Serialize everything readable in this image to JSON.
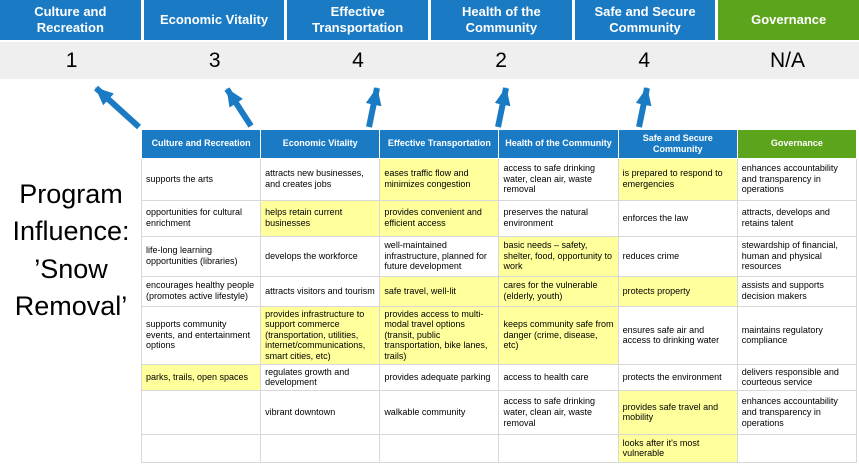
{
  "title": {
    "text": "Program Influence: ’Snow Removal’"
  },
  "colors": {
    "pillar_blue": "#1A7BC4",
    "governance_green": "#5DA41D",
    "highlight_yellow": "#FFFF9C",
    "score_band_gray": "#EFEFEF",
    "arrow_blue": "#1A7BC4"
  },
  "banner": {
    "columns": [
      {
        "label": "Culture and Recreation",
        "score": "1",
        "color": "#1A7BC4"
      },
      {
        "label": "Economic Vitality",
        "score": "3",
        "color": "#1A7BC4"
      },
      {
        "label": "Effective Transportation",
        "score": "4",
        "color": "#1A7BC4"
      },
      {
        "label": "Health of the Community",
        "score": "2",
        "color": "#1A7BC4"
      },
      {
        "label": "Safe and Secure Community",
        "score": "4",
        "color": "#1A7BC4"
      },
      {
        "label": "Governance",
        "score": "N/A",
        "color": "#5DA41D"
      }
    ]
  },
  "table": {
    "headers": [
      "Culture and Recreation",
      "Economic Vitality",
      "Effective Transportation",
      "Health of the Community",
      "Safe and Secure Community",
      "Governance"
    ],
    "rows": [
      [
        {
          "text": "supports the arts",
          "highlight": false
        },
        {
          "text": "attracts new businesses, and creates jobs",
          "highlight": false
        },
        {
          "text": "eases traffic flow and minimizes congestion",
          "highlight": true
        },
        {
          "text": "access to safe drinking water, clean air, waste removal",
          "highlight": false
        },
        {
          "text": "is prepared to respond to emergencies",
          "highlight": true
        },
        {
          "text": "enhances accountability and transparency in operations",
          "highlight": false
        }
      ],
      [
        {
          "text": "opportunities for cultural enrichment",
          "highlight": false
        },
        {
          "text": "helps retain current businesses",
          "highlight": true
        },
        {
          "text": "provides convenient and efficient access",
          "highlight": true
        },
        {
          "text": "preserves the natural environment",
          "highlight": false
        },
        {
          "text": "enforces the law",
          "highlight": false
        },
        {
          "text": "attracts, develops and retains talent",
          "highlight": false
        }
      ],
      [
        {
          "text": "life-long learning opportunities (libraries)",
          "highlight": false
        },
        {
          "text": "develops the workforce",
          "highlight": false
        },
        {
          "text": "well-maintained infrastructure, planned for future development",
          "highlight": false
        },
        {
          "text": "basic needs – safety, shelter, food, opportunity to work",
          "highlight": true
        },
        {
          "text": "reduces crime",
          "highlight": false
        },
        {
          "text": "stewardship of financial, human and physical resources",
          "highlight": false
        }
      ],
      [
        {
          "text": "encourages healthy people (promotes active lifestyle)",
          "highlight": false
        },
        {
          "text": "attracts visitors and tourism",
          "highlight": false
        },
        {
          "text": "safe travel, well-lit",
          "highlight": true
        },
        {
          "text": "cares for the vulnerable (elderly, youth)",
          "highlight": true
        },
        {
          "text": "protects property",
          "highlight": true
        },
        {
          "text": "assists and supports decision makers",
          "highlight": false
        }
      ],
      [
        {
          "text": "supports community events, and entertainment options",
          "highlight": false
        },
        {
          "text": "provides infrastructure to support commerce (transportation, utilities, internet/communications, smart cities, etc)",
          "highlight": true
        },
        {
          "text": "provides access to multi-modal travel options (transit, public transportation, bike lanes, trails)",
          "highlight": true
        },
        {
          "text": "keeps community safe from danger (crime, disease, etc)",
          "highlight": true
        },
        {
          "text": "ensures safe air and access to drinking water",
          "highlight": false
        },
        {
          "text": "maintains regulatory compliance",
          "highlight": false
        }
      ],
      [
        {
          "text": "parks, trails, open spaces",
          "highlight": true
        },
        {
          "text": "regulates growth and development",
          "highlight": false
        },
        {
          "text": "provides adequate parking",
          "highlight": false
        },
        {
          "text": "access to health care",
          "highlight": false
        },
        {
          "text": "protects the environment",
          "highlight": false
        },
        {
          "text": "delivers responsible and courteous service",
          "highlight": false
        }
      ],
      [
        {
          "text": "",
          "highlight": false
        },
        {
          "text": "vibrant downtown",
          "highlight": false
        },
        {
          "text": "walkable community",
          "highlight": false
        },
        {
          "text": "access to safe drinking water, clean air, waste removal",
          "highlight": false
        },
        {
          "text": "provides safe travel and mobility",
          "highlight": true
        },
        {
          "text": "enhances accountability and transparency in operations",
          "highlight": false
        }
      ],
      [
        {
          "text": "",
          "highlight": false
        },
        {
          "text": "",
          "highlight": false
        },
        {
          "text": "",
          "highlight": false
        },
        {
          "text": "",
          "highlight": false
        },
        {
          "text": "looks after it's most vulnerable",
          "highlight": true
        },
        {
          "text": "",
          "highlight": false
        }
      ]
    ]
  }
}
